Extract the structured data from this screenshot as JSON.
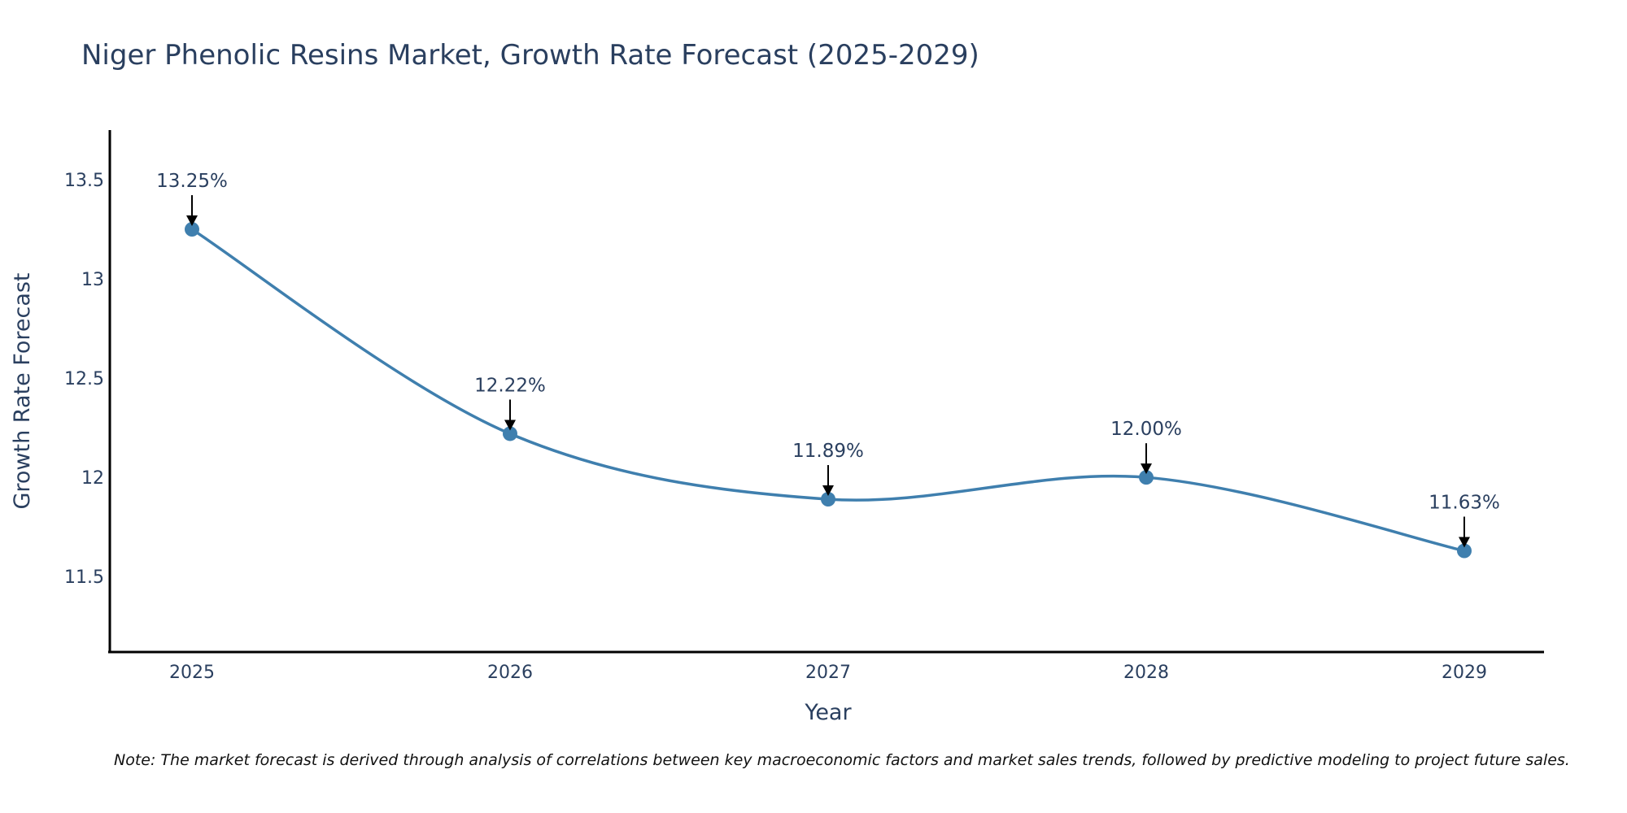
{
  "chart_data": {
    "type": "line",
    "title": "Niger Phenolic Resins Market, Growth Rate Forecast (2025-2029)",
    "xlabel": "Year",
    "ylabel": "Growth Rate Forecast",
    "categories": [
      "2025",
      "2026",
      "2027",
      "2028",
      "2029"
    ],
    "series": [
      {
        "name": "Growth Rate Forecast",
        "values": [
          13.25,
          12.22,
          11.89,
          12.0,
          11.63
        ]
      }
    ],
    "data_labels": [
      "13.25%",
      "12.22%",
      "11.89%",
      "12.00%",
      "11.63%"
    ],
    "yticks": [
      11.5,
      12,
      12.5,
      13,
      13.5
    ],
    "ytick_labels": [
      "11.5",
      "12",
      "12.5",
      "13",
      "13.5"
    ],
    "ylim": [
      11.12,
      13.75
    ],
    "grid": false,
    "line_color": "#3f7fae",
    "note": "Note: The market forecast is derived through analysis of correlations between key macroeconomic factors and market sales trends, followed by predictive modeling to project future sales."
  }
}
